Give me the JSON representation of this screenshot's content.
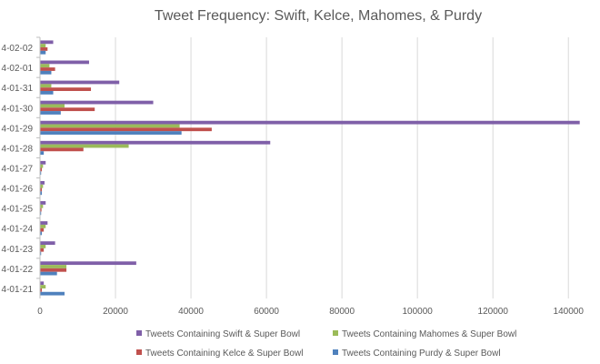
{
  "chart_data": {
    "type": "bar",
    "orientation": "horizontal",
    "title": "Tweet Frequency: Swift, Kelce, Mahomes, & Purdy",
    "xlabel": "",
    "ylabel": "",
    "xlim": [
      0,
      145000
    ],
    "x_ticks": [
      0,
      20000,
      40000,
      60000,
      80000,
      100000,
      120000,
      140000
    ],
    "grid": "vertical",
    "legend_position": "bottom",
    "categories": [
      "4-02-02",
      "4-02-01",
      "4-01-31",
      "4-01-30",
      "4-01-29",
      "4-01-28",
      "4-01-27",
      "4-01-26",
      "4-01-25",
      "4-01-24",
      "4-01-23",
      "4-01-22",
      "4-01-21"
    ],
    "series": [
      {
        "name": "Tweets Containing Swift & Super Bowl",
        "color": "#7F5FA8",
        "values": [
          3500,
          13000,
          21000,
          30000,
          143000,
          61000,
          1500,
          1200,
          1500,
          2000,
          4000,
          25500,
          1000
        ]
      },
      {
        "name": "Tweets Containing Mahomes & Super Bowl",
        "color": "#9BBB59",
        "values": [
          1500,
          2500,
          3000,
          6500,
          37000,
          23500,
          800,
          800,
          800,
          1500,
          1500,
          7000,
          1500
        ]
      },
      {
        "name": "Tweets Containing Kelce & Super Bowl",
        "color": "#C0504D",
        "values": [
          2000,
          4000,
          13500,
          14500,
          45500,
          11500,
          500,
          500,
          400,
          1000,
          1000,
          7000,
          500
        ]
      },
      {
        "name": "Tweets Containing Purdy & Super Bowl",
        "color": "#4F81BD",
        "values": [
          1500,
          3000,
          3500,
          5500,
          37500,
          1000,
          300,
          500,
          300,
          500,
          300,
          4500,
          6500
        ]
      }
    ],
    "legend_order": [
      0,
      1,
      2,
      3
    ]
  }
}
